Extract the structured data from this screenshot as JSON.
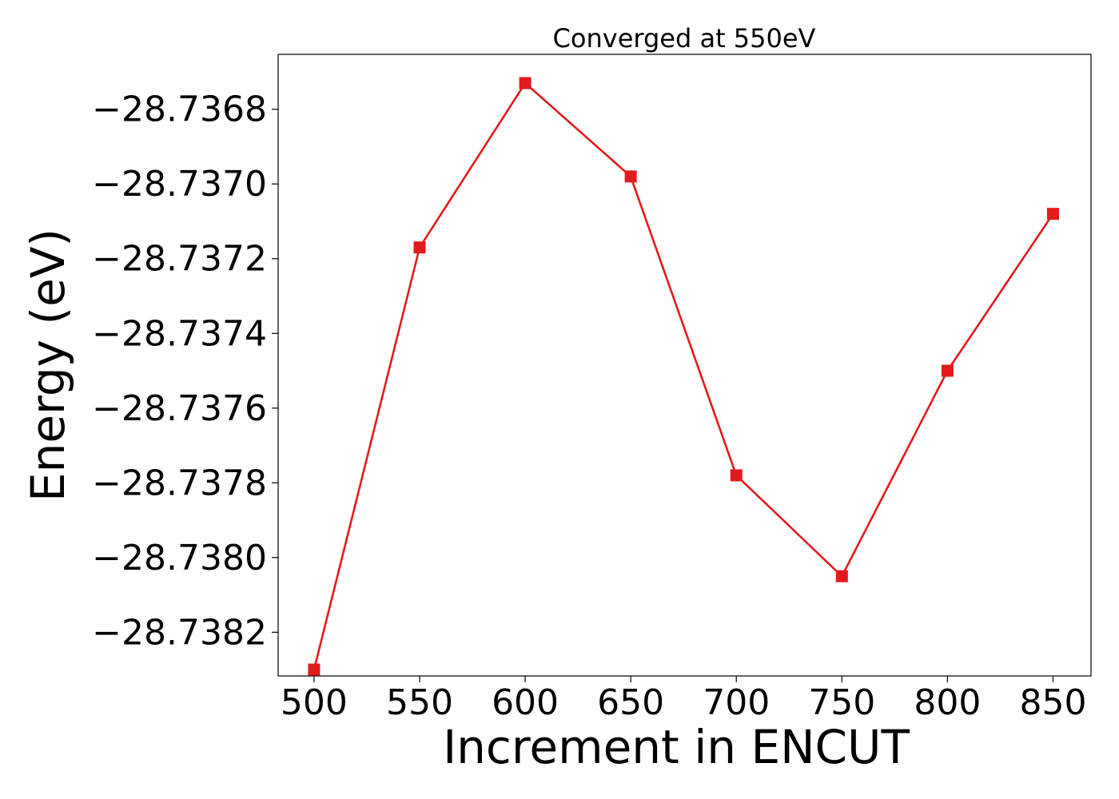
{
  "chart_data": {
    "type": "line",
    "title": "Converged at 550eV",
    "xlabel": "Increment in ENCUT",
    "ylabel": "Energy (eV)",
    "x": [
      500,
      550,
      600,
      650,
      700,
      750,
      800,
      850
    ],
    "series": [
      {
        "values": [
          -28.7383,
          -28.73717,
          -28.73673,
          -28.73698,
          -28.73778,
          -28.73805,
          -28.7375,
          -28.73708
        ],
        "color": "#e31a1c",
        "marker": "square"
      }
    ],
    "xticks": [
      500,
      550,
      600,
      650,
      700,
      750,
      800,
      850
    ],
    "xtick_labels": [
      "500",
      "550",
      "600",
      "650",
      "700",
      "750",
      "800",
      "850"
    ],
    "yticks": [
      -28.7382,
      -28.738,
      -28.7378,
      -28.7376,
      -28.7374,
      -28.7372,
      -28.737,
      -28.7368
    ],
    "ytick_labels": [
      "−28.7382",
      "−28.7380",
      "−28.7378",
      "−28.7376",
      "−28.7374",
      "−28.7372",
      "−28.7370",
      "−28.7368"
    ],
    "xlim": [
      483,
      868
    ],
    "ylim": [
      -28.738317,
      -28.736653
    ],
    "grid": false,
    "legend": "none"
  }
}
